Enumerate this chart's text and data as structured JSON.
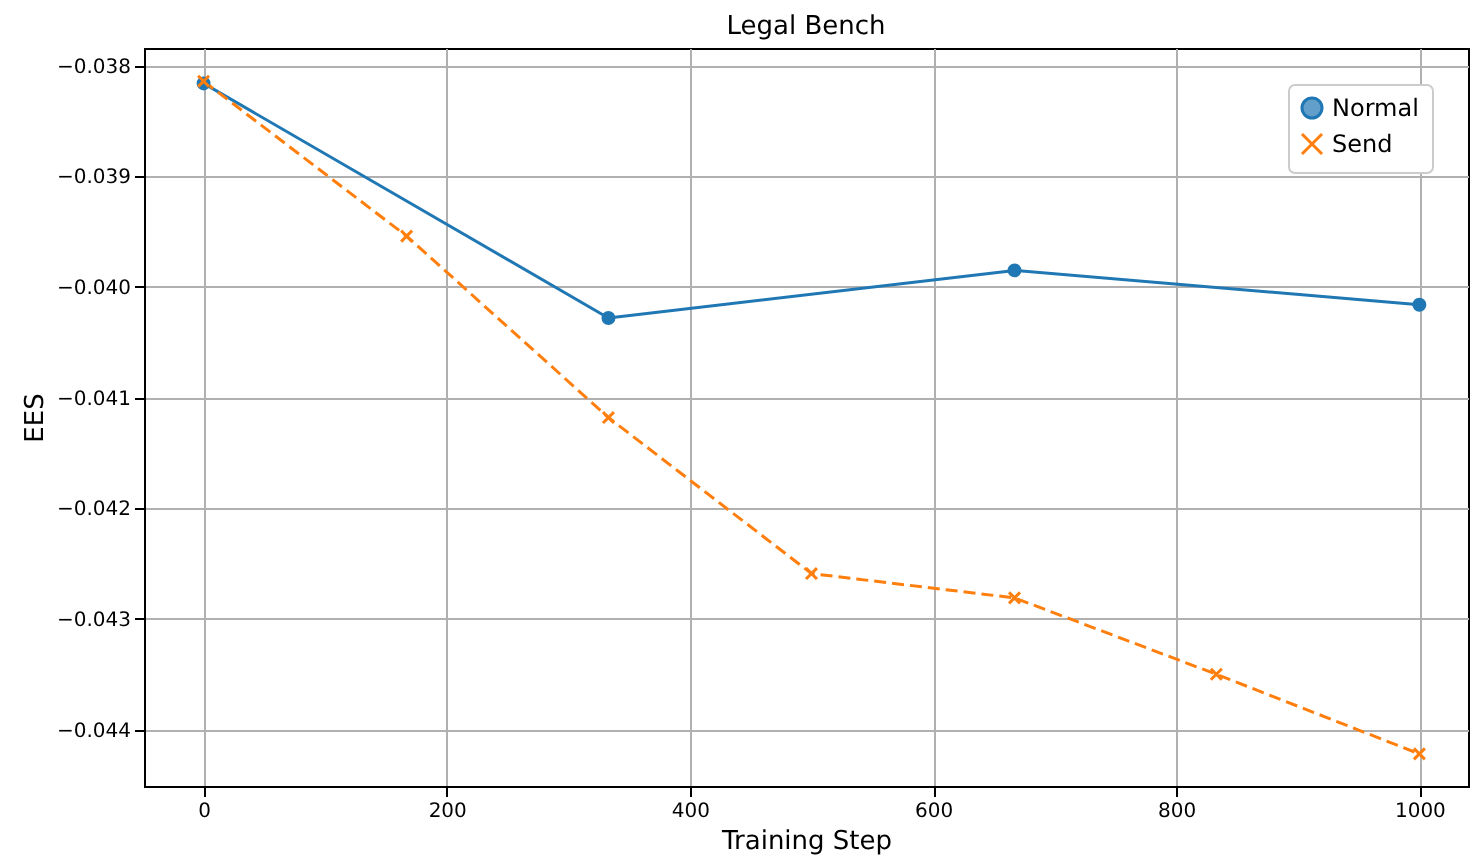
{
  "chart_data": {
    "type": "line",
    "title": "Legal Bench",
    "xlabel": "Training Step",
    "ylabel": "EES",
    "xlim": [
      -49,
      1040
    ],
    "xticks": [
      0,
      200,
      400,
      600,
      800,
      1000
    ],
    "ylim": [
      -0.04451,
      -0.03784
    ],
    "yticks": [
      {
        "value": -0.038,
        "label": "−0.038"
      },
      {
        "value": -0.039,
        "label": "−0.039"
      },
      {
        "value": -0.04,
        "label": "−0.040"
      },
      {
        "value": -0.041,
        "label": "−0.041"
      },
      {
        "value": -0.042,
        "label": "−0.042"
      },
      {
        "value": -0.043,
        "label": "−0.043"
      },
      {
        "value": -0.044,
        "label": "−0.044"
      }
    ],
    "grid": true,
    "legend": "top right",
    "series": [
      {
        "name": "Normal",
        "color": "#1f77b4",
        "marker": "circle",
        "line_style": "solid",
        "x": [
          0,
          333,
          667,
          1000
        ],
        "values": [
          -0.03816,
          -0.04028,
          -0.03985,
          -0.04016
        ]
      },
      {
        "name": "Send",
        "color": "#ff7f0e",
        "marker": "cross",
        "line_style": "dashed",
        "x": [
          0,
          167,
          333,
          500,
          667,
          833,
          1000
        ],
        "values": [
          -0.03814,
          -0.03954,
          -0.04118,
          -0.04259,
          -0.04281,
          -0.0435,
          -0.04422
        ]
      }
    ]
  }
}
